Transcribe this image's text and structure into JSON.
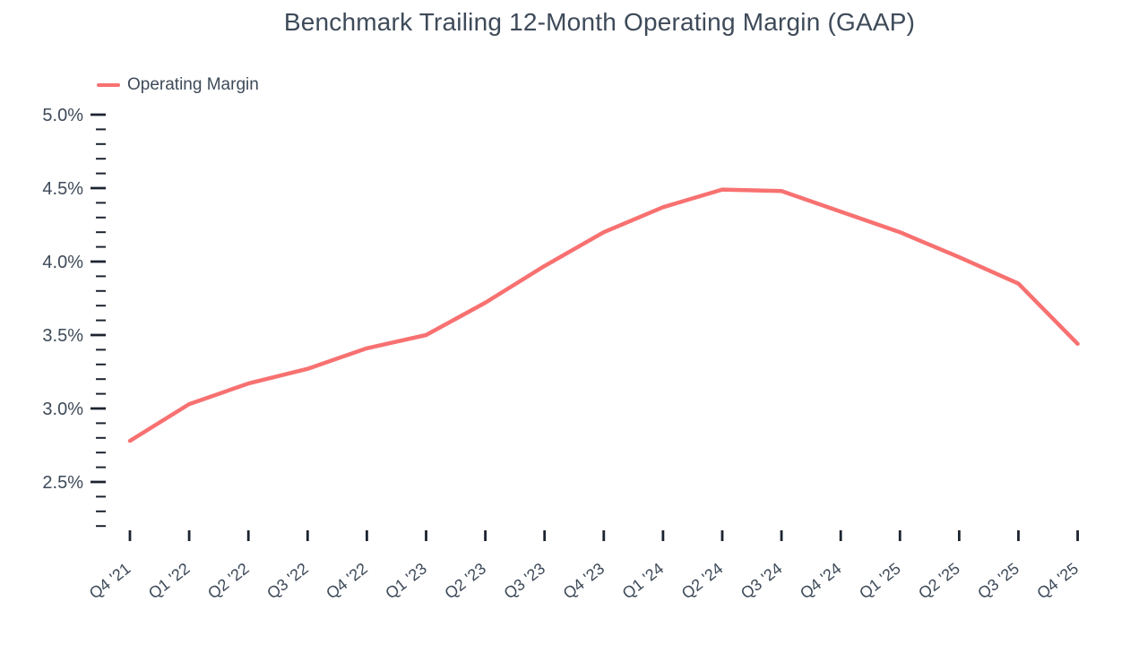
{
  "page": {
    "background": "#ffffff"
  },
  "chart_data": {
    "type": "line",
    "title": "Benchmark Trailing 12-Month Operating Margin (GAAP)",
    "xlabel": "",
    "ylabel": "",
    "x": [
      "Q4 '21",
      "Q1 '22",
      "Q2 '22",
      "Q3 '22",
      "Q4 '22",
      "Q1 '23",
      "Q2 '23",
      "Q3 '23",
      "Q4 '23",
      "Q1 '24",
      "Q2 '24",
      "Q3 '24",
      "Q4 '24",
      "Q1 '25",
      "Q2 '25",
      "Q3 '25",
      "Q4 '25"
    ],
    "series": [
      {
        "name": "Operating Margin",
        "color": "#F87171",
        "values": [
          2.78,
          3.03,
          3.17,
          3.27,
          3.41,
          3.5,
          3.72,
          3.97,
          4.2,
          4.37,
          4.49,
          4.48,
          4.34,
          4.2,
          4.03,
          3.85,
          3.44
        ]
      }
    ],
    "y_axis": {
      "min": 2.2,
      "max": 5.0,
      "unit": "%",
      "major_tick_step": 0.5,
      "minor_tick_step": 0.1,
      "major_ticks": [
        {
          "value": 5.0,
          "label": "5.0%"
        },
        {
          "value": 4.5,
          "label": "4.5%"
        },
        {
          "value": 4.0,
          "label": "4.0%"
        },
        {
          "value": 3.5,
          "label": "3.5%"
        },
        {
          "value": 3.0,
          "label": "3.0%"
        },
        {
          "value": 2.5,
          "label": "2.5%"
        }
      ]
    },
    "grid": false,
    "legend_position": "top-left",
    "colors": {
      "line": "#F87171",
      "text": "#3E4A59",
      "tick": "#1C2430"
    }
  }
}
